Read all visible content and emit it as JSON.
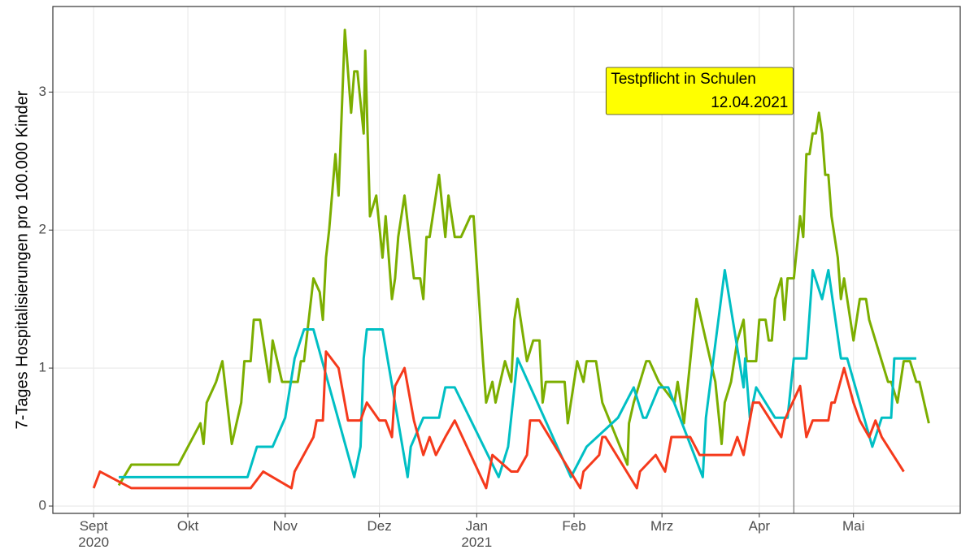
{
  "chart_data": {
    "type": "line",
    "y_label": "7-Tages Hospitalisierungen pro 100.000 Kinder",
    "xlim": [
      -13,
      276
    ],
    "ylim": [
      -0.053,
      3.62
    ],
    "xticks": [
      {
        "value": 0,
        "label": "Sept\n2020"
      },
      {
        "value": 30,
        "label": "Okt"
      },
      {
        "value": 61,
        "label": "Nov"
      },
      {
        "value": 91,
        "label": "Dez"
      },
      {
        "value": 122,
        "label": "Jan\n2021"
      },
      {
        "value": 153,
        "label": "Feb"
      },
      {
        "value": 181,
        "label": "Mrz"
      },
      {
        "value": 212,
        "label": "Apr"
      },
      {
        "value": 242,
        "label": "Mai"
      }
    ],
    "yticks": [
      0,
      1,
      2,
      3
    ],
    "grid": true,
    "annotation": {
      "x": 223,
      "text": "Testpflicht in Schulen",
      "date": "12.04.2021",
      "color": "#ffff00"
    },
    "series": [
      {
        "color": "#7cae00",
        "x": [
          8,
          12,
          27,
          34,
          35,
          36,
          39,
          41,
          44,
          47,
          48,
          50,
          51,
          53,
          56,
          57,
          60,
          65,
          66,
          67,
          70,
          72,
          73,
          74,
          75,
          77,
          78,
          79,
          80,
          82,
          83,
          84,
          86,
          86.5,
          88,
          90,
          92,
          93,
          95,
          96,
          97,
          99,
          102,
          104,
          105,
          106,
          107,
          110,
          112,
          113,
          115,
          117,
          120,
          121,
          124,
          125,
          127,
          128,
          131,
          133,
          134,
          135,
          138,
          140,
          142,
          143,
          144,
          150,
          151,
          154,
          156,
          157,
          160,
          162,
          170,
          170.5,
          172,
          176,
          177,
          180,
          185,
          186,
          188,
          192,
          195,
          198,
          200,
          201,
          203,
          204,
          205,
          207,
          208,
          211,
          212,
          214,
          215,
          216,
          217,
          219,
          220,
          221,
          223,
          225,
          226,
          227,
          228,
          229,
          230,
          231,
          232,
          233,
          234,
          235,
          237,
          238,
          239,
          241,
          242,
          244,
          246,
          247,
          249,
          253,
          254,
          256,
          258,
          260,
          262,
          263,
          266
        ],
        "values": [
          0.15,
          0.3,
          0.3,
          0.6,
          0.45,
          0.75,
          0.9,
          1.05,
          0.45,
          0.75,
          1.05,
          1.05,
          1.35,
          1.35,
          0.9,
          1.2,
          0.9,
          0.9,
          1.05,
          1.05,
          1.65,
          1.55,
          1.35,
          1.8,
          2.0,
          2.55,
          2.25,
          2.85,
          3.45,
          2.85,
          3.15,
          3.15,
          2.7,
          3.3,
          2.1,
          2.25,
          1.8,
          2.1,
          1.5,
          1.65,
          1.95,
          2.25,
          1.65,
          1.65,
          1.5,
          1.95,
          1.95,
          2.4,
          1.95,
          2.25,
          1.95,
          1.95,
          2.1,
          2.1,
          1.05,
          0.75,
          0.9,
          0.75,
          1.05,
          0.9,
          1.35,
          1.5,
          1.05,
          1.2,
          1.2,
          0.75,
          0.9,
          0.9,
          0.6,
          1.05,
          0.9,
          1.05,
          1.05,
          0.75,
          0.3,
          0.6,
          0.75,
          1.05,
          1.05,
          0.9,
          0.75,
          0.9,
          0.6,
          1.5,
          1.2,
          0.9,
          0.45,
          0.75,
          0.9,
          1.05,
          1.2,
          1.35,
          1.05,
          1.05,
          1.35,
          1.35,
          1.2,
          1.2,
          1.5,
          1.65,
          1.35,
          1.65,
          1.65,
          2.1,
          1.95,
          2.55,
          2.55,
          2.7,
          2.7,
          2.85,
          2.7,
          2.4,
          2.4,
          2.1,
          1.8,
          1.5,
          1.65,
          1.35,
          1.2,
          1.5,
          1.5,
          1.35,
          1.2,
          0.9,
          0.9,
          0.75,
          1.05,
          1.05,
          0.9,
          0.9,
          0.6
        ]
      },
      {
        "color": "#00bfc4",
        "x": [
          8,
          49,
          52,
          57,
          61,
          64,
          67,
          70,
          83,
          85,
          86,
          87,
          92,
          100,
          101,
          105,
          110,
          112,
          115,
          129,
          132,
          135,
          152,
          157,
          167,
          172,
          175,
          176,
          180,
          183,
          194,
          195,
          201,
          207,
          207.5,
          209,
          211,
          217,
          221,
          223,
          227,
          229,
          232,
          234,
          238,
          240,
          248,
          251,
          254,
          255,
          262
        ],
        "values": [
          0.21,
          0.21,
          0.43,
          0.43,
          0.64,
          1.07,
          1.28,
          1.28,
          0.21,
          0.43,
          1.07,
          1.28,
          1.28,
          0.21,
          0.43,
          0.64,
          0.64,
          0.86,
          0.86,
          0.21,
          0.43,
          1.07,
          0.21,
          0.43,
          0.64,
          0.86,
          0.64,
          0.64,
          0.86,
          0.86,
          0.21,
          0.64,
          1.71,
          0.86,
          1.07,
          0.64,
          0.86,
          0.64,
          0.64,
          1.07,
          1.07,
          1.71,
          1.5,
          1.71,
          1.07,
          1.07,
          0.43,
          0.64,
          0.64,
          1.07,
          1.07
        ]
      },
      {
        "color": "#f53a1c",
        "x": [
          0,
          2,
          12,
          50,
          54,
          63,
          64,
          70,
          71,
          73,
          74,
          78,
          81,
          85,
          87,
          91,
          93,
          95,
          96,
          99,
          102,
          105,
          107,
          109,
          112,
          115,
          125,
          127,
          133,
          135,
          138,
          139,
          142,
          155,
          156,
          161,
          162,
          163,
          173,
          174,
          179,
          182,
          184,
          190,
          193,
          203,
          205,
          207,
          210,
          212,
          219,
          220,
          225,
          227,
          229,
          234,
          235,
          236,
          239,
          242,
          244,
          247,
          249,
          251,
          258
        ],
        "values": [
          0.13,
          0.25,
          0.13,
          0.13,
          0.25,
          0.13,
          0.25,
          0.5,
          0.62,
          0.62,
          1.12,
          1.0,
          0.62,
          0.62,
          0.75,
          0.62,
          0.62,
          0.5,
          0.87,
          1.0,
          0.62,
          0.37,
          0.5,
          0.37,
          0.5,
          0.62,
          0.13,
          0.37,
          0.25,
          0.25,
          0.37,
          0.62,
          0.62,
          0.13,
          0.25,
          0.37,
          0.5,
          0.5,
          0.13,
          0.25,
          0.37,
          0.25,
          0.5,
          0.5,
          0.37,
          0.37,
          0.5,
          0.37,
          0.75,
          0.75,
          0.5,
          0.62,
          0.87,
          0.5,
          0.62,
          0.62,
          0.75,
          0.75,
          1.0,
          0.75,
          0.62,
          0.5,
          0.62,
          0.5,
          0.25
        ]
      }
    ]
  }
}
